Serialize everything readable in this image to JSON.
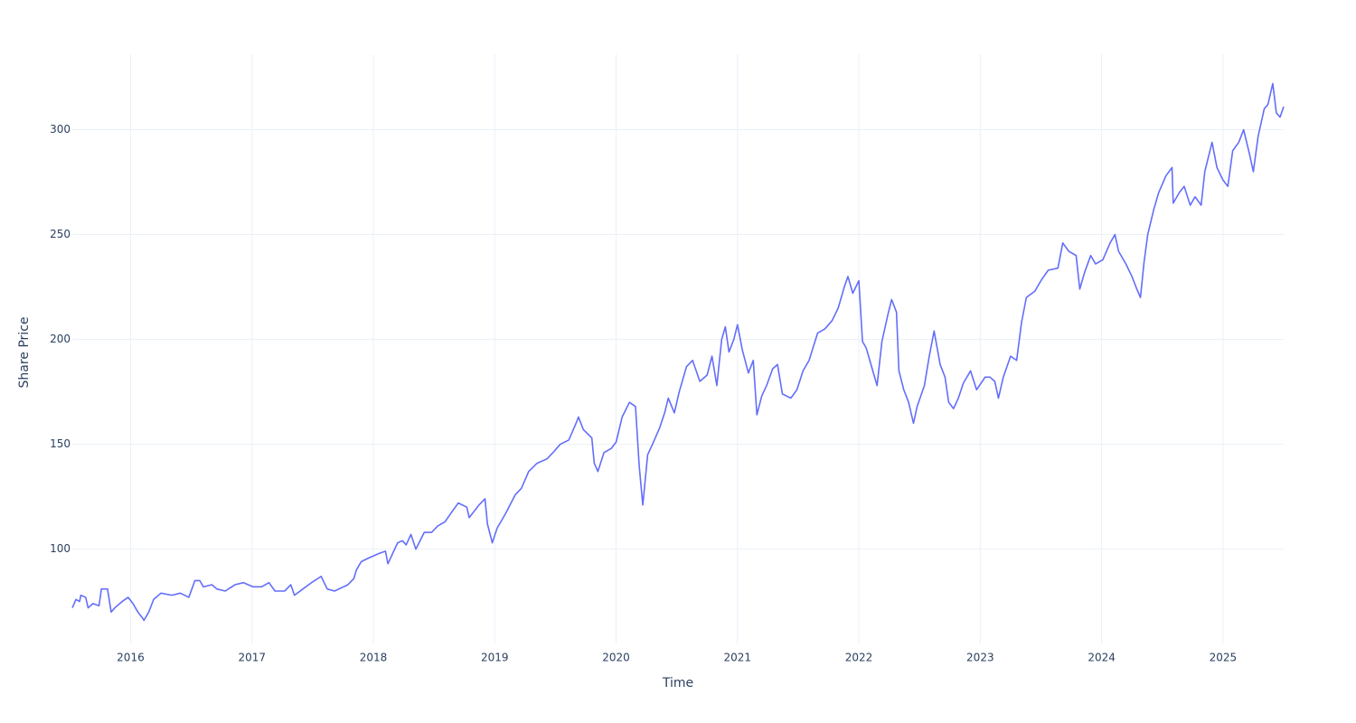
{
  "chart_data": {
    "type": "line",
    "x_label": "Time",
    "y_label": "Share Price",
    "x": [
      2015.52,
      2015.55,
      2015.58,
      2015.59,
      2015.63,
      2015.65,
      2015.69,
      2015.74,
      2015.76,
      2015.81,
      2015.84,
      2015.87,
      2015.93,
      2015.98,
      2016.02,
      2016.06,
      2016.1,
      2016.11,
      2016.15,
      2016.19,
      2016.25,
      2016.34,
      2016.41,
      2016.48,
      2016.53,
      2016.57,
      2016.6,
      2016.67,
      2016.71,
      2016.78,
      2016.86,
      2016.93,
      2017.01,
      2017.08,
      2017.14,
      2017.19,
      2017.27,
      2017.32,
      2017.35,
      2017.42,
      2017.49,
      2017.57,
      2017.62,
      2017.68,
      2017.79,
      2017.84,
      2017.86,
      2017.9,
      2017.97,
      2018.05,
      2018.1,
      2018.12,
      2018.2,
      2018.24,
      2018.27,
      2018.31,
      2018.35,
      2018.42,
      2018.48,
      2018.53,
      2018.59,
      2018.65,
      2018.7,
      2018.77,
      2018.79,
      2018.83,
      2018.87,
      2018.92,
      2018.94,
      2018.98,
      2019.02,
      2019.09,
      2019.17,
      2019.22,
      2019.28,
      2019.35,
      2019.43,
      2019.48,
      2019.54,
      2019.61,
      2019.67,
      2019.69,
      2019.73,
      2019.8,
      2019.82,
      2019.85,
      2019.9,
      2019.96,
      2020.0,
      2020.05,
      2020.11,
      2020.16,
      2020.19,
      2020.22,
      2020.26,
      2020.3,
      2020.36,
      2020.4,
      2020.43,
      2020.48,
      2020.52,
      2020.58,
      2020.63,
      2020.69,
      2020.75,
      2020.79,
      2020.83,
      2020.87,
      2020.9,
      2020.93,
      2020.97,
      2021.0,
      2021.04,
      2021.09,
      2021.13,
      2021.16,
      2021.2,
      2021.24,
      2021.29,
      2021.33,
      2021.37,
      2021.44,
      2021.49,
      2021.54,
      2021.59,
      2021.66,
      2021.72,
      2021.78,
      2021.83,
      2021.88,
      2021.91,
      2021.95,
      2022.0,
      2022.03,
      2022.06,
      2022.1,
      2022.15,
      2022.19,
      2022.24,
      2022.27,
      2022.31,
      2022.33,
      2022.37,
      2022.41,
      2022.45,
      2022.48,
      2022.54,
      2022.58,
      2022.62,
      2022.67,
      2022.71,
      2022.74,
      2022.78,
      2022.82,
      2022.86,
      2022.92,
      2022.97,
      2023.04,
      2023.08,
      2023.12,
      2023.15,
      2023.19,
      2023.25,
      2023.3,
      2023.34,
      2023.38,
      2023.45,
      2023.5,
      2023.56,
      2023.64,
      2023.68,
      2023.73,
      2023.79,
      2023.82,
      2023.86,
      2023.91,
      2023.95,
      2024.01,
      2024.07,
      2024.11,
      2024.14,
      2024.2,
      2024.25,
      2024.29,
      2024.32,
      2024.35,
      2024.38,
      2024.43,
      2024.47,
      2024.53,
      2024.58,
      2024.59,
      2024.64,
      2024.68,
      2024.73,
      2024.77,
      2024.82,
      2024.85,
      2024.91,
      2024.95,
      2025.0,
      2025.04,
      2025.08,
      2025.13,
      2025.17,
      2025.22,
      2025.25,
      2025.29,
      2025.34,
      2025.37,
      2025.41,
      2025.44,
      2025.47,
      2025.5
    ],
    "values": [
      72,
      76,
      75,
      78,
      77,
      72,
      74,
      73,
      81,
      81,
      70,
      72,
      75,
      77,
      74,
      70,
      67,
      66,
      70,
      76,
      79,
      78,
      79,
      77,
      85,
      85,
      82,
      83,
      81,
      80,
      83,
      84,
      82,
      82,
      84,
      80,
      80,
      83,
      78,
      81,
      84,
      87,
      81,
      80,
      83,
      86,
      90,
      94,
      96,
      98,
      99,
      93,
      103,
      104,
      102,
      107,
      100,
      108,
      108,
      111,
      113,
      118,
      122,
      120,
      115,
      118,
      121,
      124,
      112,
      103,
      110,
      117,
      126,
      129,
      137,
      141,
      143,
      146,
      150,
      152,
      160,
      163,
      157,
      153,
      141,
      137,
      146,
      148,
      151,
      163,
      170,
      168,
      140,
      121,
      145,
      150,
      158,
      165,
      172,
      165,
      175,
      187,
      190,
      180,
      183,
      192,
      178,
      200,
      206,
      194,
      200,
      207,
      195,
      184,
      190,
      164,
      173,
      178,
      186,
      188,
      174,
      172,
      176,
      185,
      190,
      203,
      205,
      209,
      215,
      225,
      230,
      222,
      228,
      199,
      196,
      188,
      178,
      199,
      212,
      219,
      213,
      185,
      176,
      170,
      160,
      168,
      178,
      192,
      204,
      188,
      182,
      170,
      167,
      172,
      179,
      185,
      176,
      182,
      182,
      180,
      172,
      182,
      192,
      190,
      208,
      220,
      223,
      228,
      233,
      234,
      246,
      242,
      240,
      224,
      232,
      240,
      236,
      238,
      246,
      250,
      242,
      236,
      230,
      224,
      220,
      237,
      250,
      262,
      270,
      278,
      282,
      265,
      270,
      273,
      264,
      268,
      264,
      280,
      294,
      282,
      276,
      273,
      290,
      294,
      300,
      288,
      280,
      297,
      310,
      312,
      322,
      308,
      306,
      311
    ],
    "color": "#636efa",
    "xlim": [
      2015.52,
      2025.5
    ],
    "xticks": [
      2016,
      2017,
      2018,
      2019,
      2020,
      2021,
      2022,
      2023,
      2024,
      2025
    ],
    "ylim": [
      55,
      336
    ],
    "yticks": [
      100,
      150,
      200,
      250,
      300
    ],
    "grid": true
  }
}
